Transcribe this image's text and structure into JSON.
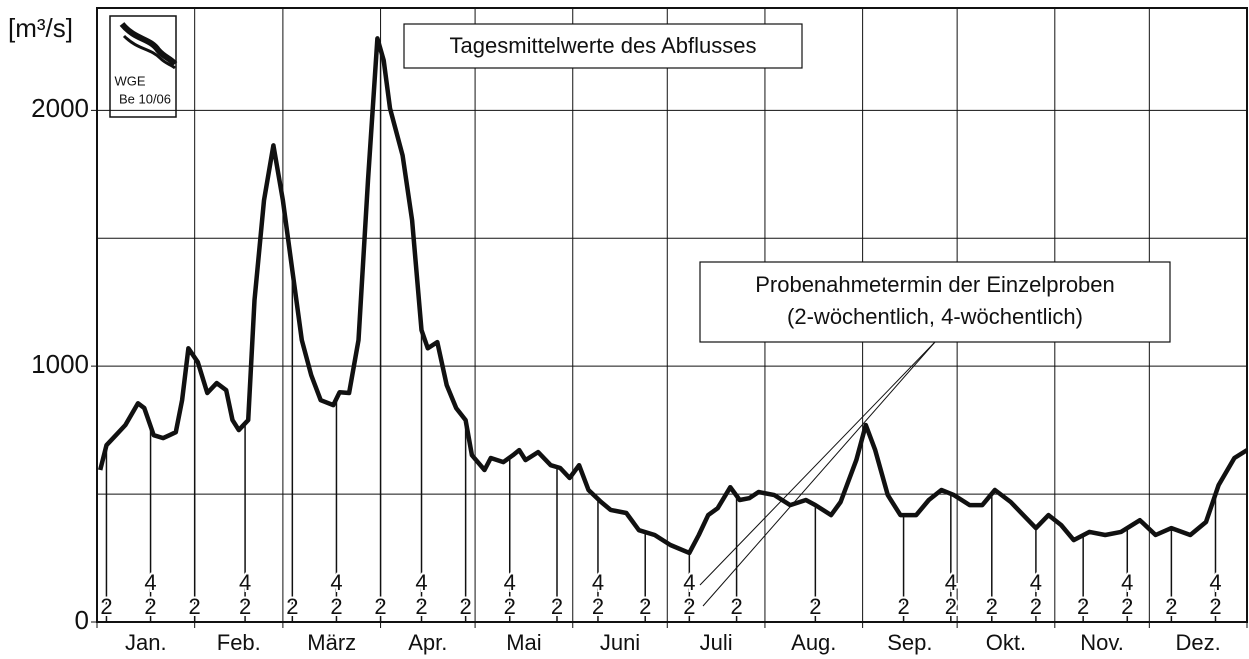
{
  "chart_data": {
    "type": "line",
    "title": "Tagesmittelwerte des Abflusses",
    "y_label": "[m³/s]",
    "logo": {
      "line1": "WGE",
      "line2": "Be 10/06"
    },
    "annotation": {
      "line1": "Probenahmetermin der Einzelproben",
      "line2": "(2-wöchentlich, 4-wöchentlich)"
    },
    "categories": [
      "Jan.",
      "Feb.",
      "März",
      "Apr.",
      "Mai",
      "Juni",
      "Juli",
      "Aug.",
      "Sep.",
      "Okt.",
      "Nov.",
      "Dez."
    ],
    "xlim": [
      0,
      365
    ],
    "xticks": [
      0,
      31,
      59,
      90,
      120,
      151,
      181,
      212,
      243,
      273,
      304,
      334,
      365
    ],
    "ylim": [
      0,
      2400
    ],
    "yticks": [
      0,
      1000,
      2000
    ],
    "ygrid": [
      500,
      1500
    ],
    "series": [
      {
        "color": "#111111",
        "x": [
          1,
          3,
          6,
          9,
          13,
          15,
          18,
          21,
          23,
          25,
          27,
          29,
          32,
          35,
          38,
          41,
          43,
          45,
          48,
          50,
          53,
          56,
          59,
          62,
          65,
          68,
          71,
          75,
          77,
          80,
          83,
          86,
          89,
          91,
          93,
          97,
          100,
          103,
          105,
          108,
          111,
          114,
          117,
          119,
          123,
          125,
          129,
          132,
          134,
          136,
          140,
          144,
          147,
          150,
          153,
          156,
          160,
          163,
          168,
          172,
          177,
          182,
          188,
          191,
          194,
          197,
          201,
          204,
          207,
          210,
          215,
          220,
          225,
          228,
          233,
          236,
          241,
          244,
          247,
          251,
          255,
          260,
          264,
          268,
          272,
          277,
          281,
          285,
          290,
          294,
          298,
          302,
          306,
          310,
          315,
          320,
          325,
          331,
          336,
          341,
          347,
          352,
          356,
          361,
          365
        ],
        "values": [
          594,
          691,
          730,
          770,
          855,
          836,
          730,
          719,
          730,
          742,
          867,
          1070,
          1016,
          895,
          934,
          906,
          789,
          750,
          789,
          1258,
          1648,
          1863,
          1648,
          1375,
          1102,
          965,
          867,
          848,
          898,
          895,
          1102,
          1727,
          2281,
          2195,
          2008,
          1824,
          1570,
          1141,
          1070,
          1094,
          926,
          836,
          789,
          652,
          594,
          641,
          625,
          652,
          672,
          633,
          664,
          613,
          602,
          563,
          613,
          516,
          469,
          438,
          426,
          359,
          340,
          301,
          270,
          340,
          418,
          445,
          527,
          477,
          484,
          508,
          496,
          457,
          477,
          457,
          418,
          469,
          633,
          770,
          672,
          496,
          418,
          418,
          477,
          516,
          496,
          457,
          457,
          516,
          469,
          418,
          367,
          418,
          379,
          320,
          352,
          340,
          352,
          398,
          340,
          367,
          340,
          391,
          535,
          641,
          672
        ]
      }
    ],
    "samples": [
      {
        "x": 3,
        "labels": [
          "2"
        ]
      },
      {
        "x": 17,
        "labels": [
          "2",
          "4"
        ]
      },
      {
        "x": 31,
        "labels": [
          "2"
        ]
      },
      {
        "x": 47,
        "labels": [
          "2",
          "4"
        ]
      },
      {
        "x": 62,
        "labels": [
          "2"
        ]
      },
      {
        "x": 76,
        "labels": [
          "2",
          "4"
        ]
      },
      {
        "x": 90,
        "labels": [
          "2"
        ]
      },
      {
        "x": 103,
        "labels": [
          "2",
          "4"
        ]
      },
      {
        "x": 117,
        "labels": [
          "2"
        ]
      },
      {
        "x": 131,
        "labels": [
          "2",
          "4"
        ]
      },
      {
        "x": 146,
        "labels": [
          "2"
        ]
      },
      {
        "x": 159,
        "labels": [
          "2",
          "4"
        ]
      },
      {
        "x": 174,
        "labels": [
          "2"
        ]
      },
      {
        "x": 188,
        "labels": [
          "2",
          "4"
        ]
      },
      {
        "x": 203,
        "labels": [
          "2"
        ]
      },
      {
        "x": 228,
        "labels": [
          "2"
        ]
      },
      {
        "x": 256,
        "labels": [
          "2"
        ]
      },
      {
        "x": 271,
        "labels": [
          "2",
          "4"
        ]
      },
      {
        "x": 284,
        "labels": [
          "2"
        ]
      },
      {
        "x": 298,
        "labels": [
          "2",
          "4"
        ]
      },
      {
        "x": 313,
        "labels": [
          "2"
        ]
      },
      {
        "x": 327,
        "labels": [
          "2",
          "4"
        ]
      },
      {
        "x": 341,
        "labels": [
          "2"
        ]
      },
      {
        "x": 355,
        "labels": [
          "2",
          "4"
        ]
      }
    ]
  }
}
